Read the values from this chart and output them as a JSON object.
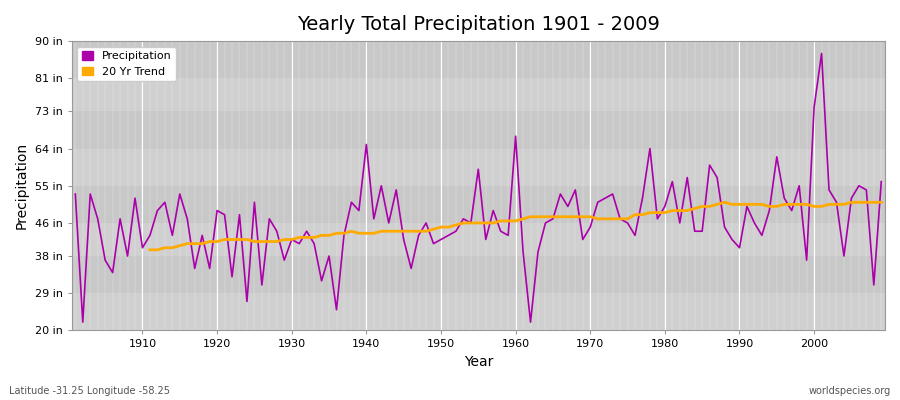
{
  "title": "Yearly Total Precipitation 1901 - 2009",
  "xlabel": "Year",
  "ylabel": "Precipitation",
  "fig_bg_color": "#ffffff",
  "plot_bg_color": "#dcdcdc",
  "precip_color": "#aa00aa",
  "trend_color": "#ffaa00",
  "legend_labels": [
    "Precipitation",
    "20 Yr Trend"
  ],
  "ylim": [
    20,
    90
  ],
  "yticks": [
    20,
    29,
    38,
    46,
    55,
    64,
    73,
    81,
    90
  ],
  "ytick_labels": [
    "20 in",
    "29 in",
    "38 in",
    "46 in",
    "55 in",
    "64 in",
    "73 in",
    "81 in",
    "90 in"
  ],
  "xticks": [
    1910,
    1920,
    1930,
    1940,
    1950,
    1960,
    1970,
    1980,
    1990,
    2000
  ],
  "footer_left": "Latitude -31.25 Longitude -58.25",
  "footer_right": "worldspecies.org",
  "years": [
    1901,
    1902,
    1903,
    1904,
    1905,
    1906,
    1907,
    1908,
    1909,
    1910,
    1911,
    1912,
    1913,
    1914,
    1915,
    1916,
    1917,
    1918,
    1919,
    1920,
    1921,
    1922,
    1923,
    1924,
    1925,
    1926,
    1927,
    1928,
    1929,
    1930,
    1931,
    1932,
    1933,
    1934,
    1935,
    1936,
    1937,
    1938,
    1939,
    1940,
    1941,
    1942,
    1943,
    1944,
    1945,
    1946,
    1947,
    1948,
    1949,
    1950,
    1951,
    1952,
    1953,
    1954,
    1955,
    1956,
    1957,
    1958,
    1959,
    1960,
    1961,
    1962,
    1963,
    1964,
    1965,
    1966,
    1967,
    1968,
    1969,
    1970,
    1971,
    1972,
    1973,
    1974,
    1975,
    1976,
    1977,
    1978,
    1979,
    1980,
    1981,
    1982,
    1983,
    1984,
    1985,
    1986,
    1987,
    1988,
    1989,
    1990,
    1991,
    1992,
    1993,
    1994,
    1995,
    1996,
    1997,
    1998,
    1999,
    2000,
    2001,
    2002,
    2003,
    2004,
    2005,
    2006,
    2007,
    2008,
    2009
  ],
  "precip": [
    53,
    22,
    53,
    47,
    37,
    34,
    47,
    38,
    52,
    40,
    43,
    49,
    51,
    43,
    53,
    47,
    35,
    43,
    35,
    49,
    48,
    33,
    48,
    27,
    51,
    31,
    47,
    44,
    37,
    42,
    41,
    44,
    41,
    32,
    38,
    25,
    43,
    51,
    49,
    65,
    47,
    55,
    46,
    54,
    42,
    35,
    43,
    46,
    41,
    42,
    43,
    44,
    47,
    46,
    59,
    42,
    49,
    44,
    43,
    67,
    39,
    22,
    39,
    46,
    47,
    53,
    50,
    54,
    42,
    45,
    51,
    52,
    53,
    47,
    46,
    43,
    52,
    64,
    47,
    50,
    56,
    46,
    57,
    44,
    44,
    60,
    57,
    45,
    42,
    40,
    50,
    46,
    43,
    49,
    62,
    52,
    49,
    55,
    37,
    74,
    87,
    54,
    51,
    38,
    52,
    55,
    54,
    31,
    56
  ],
  "trend_years": [
    1911,
    1912,
    1913,
    1914,
    1915,
    1916,
    1917,
    1918,
    1919,
    1920,
    1921,
    1922,
    1923,
    1924,
    1925,
    1926,
    1927,
    1928,
    1929,
    1930,
    1931,
    1932,
    1933,
    1934,
    1935,
    1936,
    1937,
    1938,
    1939,
    1940,
    1941,
    1942,
    1943,
    1944,
    1945,
    1946,
    1947,
    1948,
    1949,
    1950,
    1951,
    1952,
    1953,
    1954,
    1955,
    1956,
    1957,
    1958,
    1959,
    1960,
    1961,
    1962,
    1963,
    1964,
    1965,
    1966,
    1967,
    1968,
    1969,
    1970,
    1971,
    1972,
    1973,
    1974,
    1975,
    1976,
    1977,
    1978,
    1979,
    1980,
    1981,
    1982,
    1983,
    1984,
    1985,
    1986,
    1987,
    1988,
    1989,
    1990,
    1991,
    1992,
    1993,
    1994,
    1995,
    1996,
    1997,
    1998,
    1999,
    2000,
    2001,
    2002,
    2003,
    2004,
    2005,
    2006,
    2007,
    2008,
    2009
  ],
  "trend": [
    39.5,
    39.5,
    40.0,
    40.0,
    40.5,
    41.0,
    41.0,
    41.0,
    41.5,
    41.5,
    42.0,
    42.0,
    42.0,
    42.0,
    41.5,
    41.5,
    41.5,
    41.5,
    42.0,
    42.0,
    42.5,
    42.5,
    42.5,
    43.0,
    43.0,
    43.5,
    43.5,
    44.0,
    43.5,
    43.5,
    43.5,
    44.0,
    44.0,
    44.0,
    44.0,
    44.0,
    44.0,
    44.0,
    44.5,
    45.0,
    45.0,
    45.5,
    46.0,
    46.0,
    46.0,
    46.0,
    46.0,
    46.5,
    46.5,
    46.5,
    47.0,
    47.5,
    47.5,
    47.5,
    47.5,
    47.5,
    47.5,
    47.5,
    47.5,
    47.5,
    47.0,
    47.0,
    47.0,
    47.0,
    47.0,
    48.0,
    48.0,
    48.5,
    48.5,
    48.5,
    49.0,
    49.0,
    49.0,
    49.5,
    50.0,
    50.0,
    50.5,
    51.0,
    50.5,
    50.5,
    50.5,
    50.5,
    50.5,
    50.0,
    50.0,
    50.5,
    50.5,
    50.5,
    50.5,
    50.0,
    50.0,
    50.5,
    50.5,
    50.5,
    51.0,
    51.0,
    51.0,
    51.0,
    51.0
  ],
  "band_colors": [
    "#d0d0d0",
    "#c8c8c8"
  ],
  "grid_color": "#ffffff",
  "spine_color": "#999999"
}
